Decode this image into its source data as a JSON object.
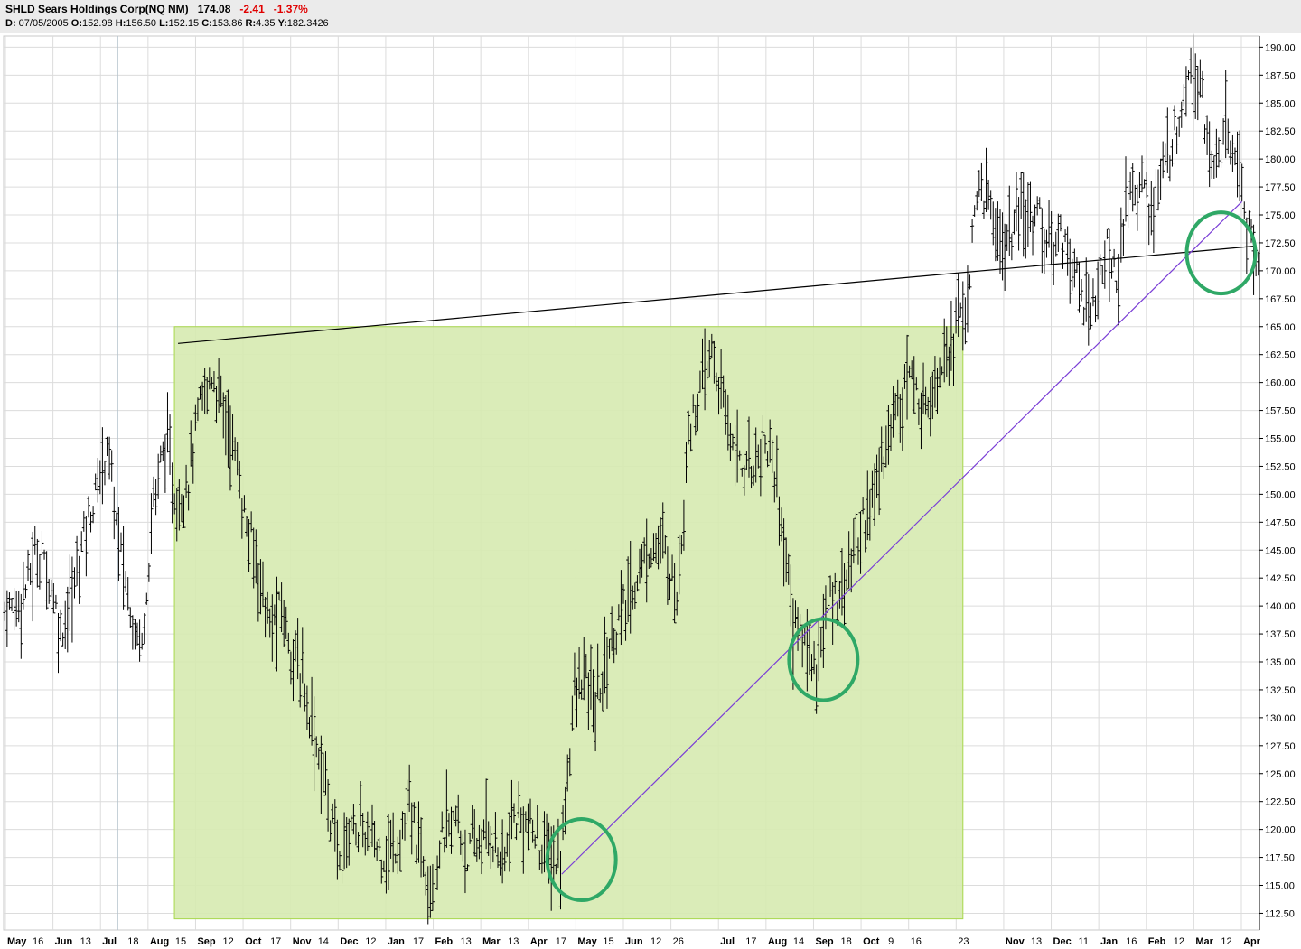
{
  "header": {
    "symbol_name": "SHLD Sears Holdings Corp(NQ NM)",
    "last": "174.08",
    "change": "-2.41",
    "change_pct": "-1.37%",
    "d_label": "D:",
    "date": "07/05/2005",
    "o_label": "O:",
    "open": "152.98",
    "h_label": "H:",
    "high": "156.50",
    "l_label": "L:",
    "low": "152.15",
    "c_label": "C:",
    "close": "153.86",
    "r_label": "R:",
    "range": "4.35",
    "y_label": "Y:",
    "y_value": "182.3426"
  },
  "colors": {
    "bars": "#000000",
    "highlight_fill": "#d6eab0",
    "highlight_stroke": "#a8d84c",
    "trendline_black": "#000000",
    "trendline_purple": "#7a3ed6",
    "circles": "#2fa866",
    "grid": "#dcdcdc",
    "cursor": "#b4c2cc"
  },
  "chart_data": {
    "type": "ohlc",
    "ylim": [
      111,
      191
    ],
    "y_ticks": [
      "112.50",
      "115.00",
      "117.50",
      "120.00",
      "122.50",
      "125.00",
      "127.50",
      "130.00",
      "132.50",
      "135.00",
      "137.50",
      "140.00",
      "142.50",
      "145.00",
      "147.50",
      "150.00",
      "152.50",
      "155.00",
      "157.50",
      "160.00",
      "162.50",
      "165.00",
      "167.50",
      "170.00",
      "172.50",
      "175.00",
      "177.50",
      "180.00",
      "182.50",
      "185.00",
      "187.50",
      "190.00"
    ],
    "x_labels": [
      {
        "month": "May",
        "day": "16"
      },
      {
        "month": "Jun",
        "day": "13"
      },
      {
        "month": "Jul",
        "day": "18"
      },
      {
        "month": "Aug",
        "day": "15"
      },
      {
        "month": "Sep",
        "day": "12"
      },
      {
        "month": "Oct",
        "day": "17"
      },
      {
        "month": "Nov",
        "day": "14"
      },
      {
        "month": "Dec",
        "day": "12"
      },
      {
        "month": "Jan",
        "day": "17"
      },
      {
        "month": "Feb",
        "day": "13"
      },
      {
        "month": "Mar",
        "day": "13"
      },
      {
        "month": "Apr",
        "day": "17"
      },
      {
        "month": "May",
        "day": "15"
      },
      {
        "month": "Jun",
        "day": "12"
      },
      {
        "month": "",
        "day": "26"
      },
      {
        "month": "Jul",
        "day": "17"
      },
      {
        "month": "Aug",
        "day": "14"
      },
      {
        "month": "Sep",
        "day": "18"
      },
      {
        "month": "Oct",
        "day": "9"
      },
      {
        "month": "",
        "day": "16"
      },
      {
        "month": "",
        "day": "23"
      },
      {
        "month": "Nov",
        "day": "13"
      },
      {
        "month": "Dec",
        "day": "11"
      },
      {
        "month": "Jan",
        "day": "16"
      },
      {
        "month": "Feb",
        "day": "12"
      },
      {
        "month": "Mar",
        "day": "12"
      },
      {
        "month": "Apr",
        "day": ""
      }
    ],
    "period_count": 108,
    "highlight_box": {
      "x_start": 14.5,
      "x_end": 82,
      "y_low": 112,
      "y_high": 165
    },
    "trendlines": [
      {
        "name": "resistance",
        "x1": 14.5,
        "y1": 163.5,
        "x2": 107,
        "y2": 172.2
      },
      {
        "name": "support",
        "x1": 47.5,
        "y1": 116,
        "x2": 106,
        "y2": 176.2
      }
    ],
    "circles": [
      {
        "x": 49.2,
        "y": 117.3
      },
      {
        "x": 70.0,
        "y": 135.2
      },
      {
        "x": 104.2,
        "y": 171.6
      }
    ],
    "series_weekly_closes": [
      140,
      142,
      145,
      143,
      138,
      141,
      147,
      150,
      155,
      146,
      140,
      137,
      150,
      155,
      149,
      152,
      158,
      161,
      158,
      154,
      147,
      144,
      138,
      140,
      136,
      133,
      128,
      123,
      117,
      121,
      120,
      119,
      118,
      119,
      122,
      118,
      116,
      120,
      121,
      118,
      119,
      120,
      117,
      121,
      121,
      119,
      118,
      117,
      131,
      134,
      131,
      136,
      139,
      141,
      144,
      146,
      145,
      141,
      156,
      159,
      163,
      158,
      155,
      152,
      154,
      155,
      148,
      139,
      137,
      135,
      140,
      142,
      144,
      148,
      150,
      155,
      159,
      161,
      158,
      160,
      163,
      165,
      168,
      178,
      176,
      172,
      174,
      175,
      176,
      172,
      174,
      171,
      167,
      168,
      172,
      170,
      178,
      178,
      175,
      180,
      183,
      189,
      188,
      179,
      182,
      181,
      175,
      171
    ]
  }
}
